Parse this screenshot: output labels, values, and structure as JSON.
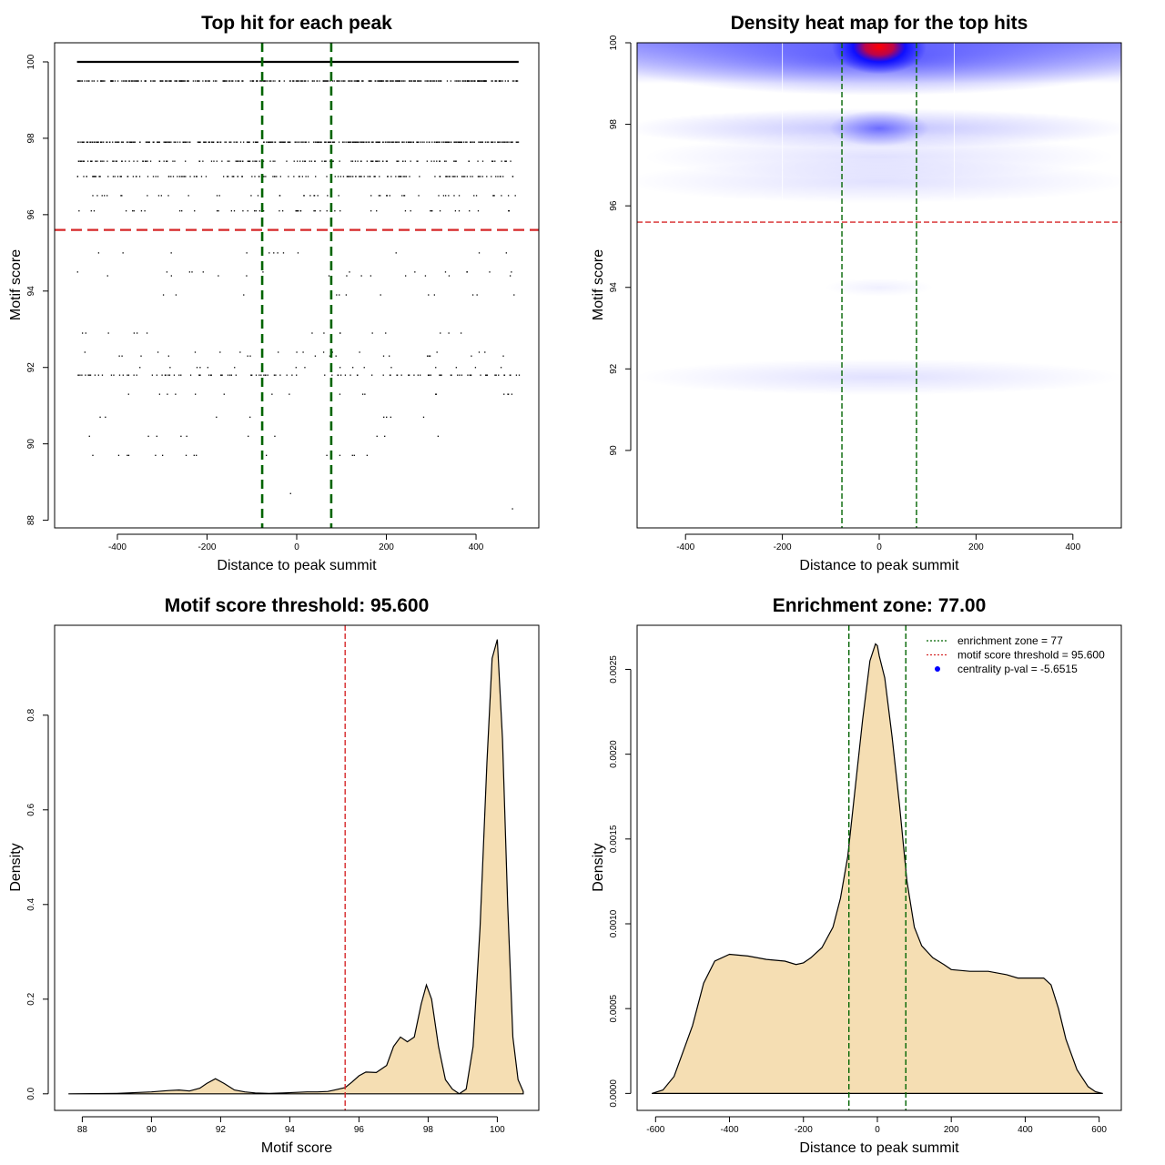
{
  "colors": {
    "threshold": "#d62728",
    "zone": "#006400",
    "fill": "#f5deb3",
    "heat_low": "#ffffff",
    "heat_mid": "#0000ff",
    "heat_high": "#ff0000",
    "pval_dot": "#0000ff"
  },
  "chart_data": [
    {
      "type": "scatter",
      "title": "Top hit for each peak",
      "xlabel": "Distance to peak summit",
      "ylabel": "Motif score",
      "xlim": [
        -540,
        540
      ],
      "ylim": [
        87.8,
        100.5
      ],
      "xticks": [
        -400,
        -200,
        0,
        200,
        400
      ],
      "yticks": [
        88,
        90,
        92,
        94,
        96,
        98,
        100
      ],
      "threshold": 95.6,
      "zone": [
        -77,
        77
      ],
      "dense_rows": [
        {
          "score": 100.0,
          "density": "full"
        },
        {
          "score": 99.5,
          "density": "high"
        },
        {
          "score": 97.9,
          "density": "high"
        },
        {
          "score": 97.4,
          "density": "medium"
        },
        {
          "score": 97.0,
          "density": "medium"
        },
        {
          "score": 96.5,
          "density": "low"
        },
        {
          "score": 96.1,
          "density": "low"
        }
      ],
      "sparse_rows": [
        95.0,
        94.5,
        94.4,
        93.9,
        92.9,
        92.4,
        92.3,
        92.0,
        91.8,
        91.3,
        90.7,
        90.2,
        89.7
      ],
      "outliers": [
        [
          -15,
          88.7
        ],
        [
          480,
          88.3
        ],
        [
          -490,
          94.5
        ],
        [
          195,
          90.2
        ]
      ]
    },
    {
      "type": "heatmap",
      "title": "Density heat map for the top hits",
      "xlabel": "Distance to peak summit",
      "ylabel": "Motif score",
      "xlim": [
        -500,
        500
      ],
      "ylim": [
        88.1,
        100
      ],
      "xticks": [
        -400,
        -200,
        0,
        200,
        400
      ],
      "yticks": [
        90,
        92,
        94,
        96,
        98,
        100
      ],
      "threshold": 95.6,
      "zone": [
        -77,
        77
      ]
    },
    {
      "type": "area",
      "title": "Motif score threshold: 95.600",
      "xlabel": "Motif score",
      "ylabel": "Density",
      "xlim": [
        87.2,
        101.2
      ],
      "ylim": [
        -0.035,
        0.99
      ],
      "xticks": [
        88,
        90,
        92,
        94,
        96,
        98,
        100
      ],
      "yticks": [
        "0.0",
        "0.2",
        "0.4",
        "0.6",
        "0.8"
      ],
      "threshold": 95.6,
      "x": [
        87.6,
        89.0,
        90.0,
        90.5,
        90.8,
        91.1,
        91.4,
        91.6,
        91.85,
        92.1,
        92.4,
        92.7,
        93.0,
        93.4,
        93.8,
        94.2,
        94.5,
        94.8,
        95.1,
        95.3,
        95.6,
        95.8,
        96.0,
        96.2,
        96.5,
        96.8,
        97.0,
        97.2,
        97.4,
        97.6,
        97.8,
        97.95,
        98.1,
        98.3,
        98.5,
        98.7,
        98.9,
        99.1,
        99.3,
        99.5,
        99.7,
        99.85,
        100.0,
        100.15,
        100.3,
        100.45,
        100.6,
        100.75
      ],
      "values": [
        0.0,
        0.001,
        0.004,
        0.007,
        0.008,
        0.006,
        0.012,
        0.022,
        0.032,
        0.022,
        0.008,
        0.004,
        0.002,
        0.001,
        0.002,
        0.003,
        0.004,
        0.004,
        0.005,
        0.008,
        0.013,
        0.025,
        0.038,
        0.046,
        0.045,
        0.06,
        0.1,
        0.12,
        0.11,
        0.12,
        0.19,
        0.23,
        0.2,
        0.1,
        0.03,
        0.01,
        0.0,
        0.01,
        0.1,
        0.35,
        0.7,
        0.92,
        0.96,
        0.75,
        0.4,
        0.12,
        0.03,
        0.005
      ]
    },
    {
      "type": "area",
      "title": "Enrichment zone: 77.00",
      "xlabel": "Distance to peak summit",
      "ylabel": "Density",
      "xlim": [
        -650,
        660
      ],
      "ylim": [
        -0.0001,
        0.00276
      ],
      "xticks": [
        -600,
        -400,
        -200,
        0,
        200,
        400,
        600
      ],
      "yticks": [
        "0.0000",
        "0.0005",
        "0.0010",
        "0.0015",
        "0.0020",
        "0.0025"
      ],
      "zone": [
        -77,
        77
      ],
      "x": [
        -610,
        -580,
        -550,
        -520,
        -500,
        -470,
        -440,
        -400,
        -350,
        -300,
        -250,
        -220,
        -200,
        -180,
        -150,
        -120,
        -100,
        -80,
        -60,
        -40,
        -20,
        -5,
        0,
        5,
        20,
        40,
        60,
        80,
        100,
        120,
        150,
        180,
        200,
        250,
        300,
        350,
        380,
        420,
        450,
        470,
        490,
        510,
        540,
        570,
        590,
        610
      ],
      "values": [
        0.0,
        2e-05,
        0.0001,
        0.00028,
        0.0004,
        0.00065,
        0.00078,
        0.00082,
        0.00081,
        0.00079,
        0.00078,
        0.00076,
        0.00077,
        0.0008,
        0.00086,
        0.00098,
        0.00115,
        0.0014,
        0.0018,
        0.0022,
        0.00255,
        0.00265,
        0.00264,
        0.00258,
        0.00245,
        0.0021,
        0.0017,
        0.00125,
        0.00098,
        0.00087,
        0.0008,
        0.00076,
        0.00073,
        0.00072,
        0.00072,
        0.0007,
        0.00068,
        0.00068,
        0.00068,
        0.00064,
        0.0005,
        0.00032,
        0.00014,
        4e-05,
        1e-05,
        0.0
      ],
      "legend": [
        {
          "label": "enrichment zone = 77",
          "style": "dotted-line",
          "color": "#006400"
        },
        {
          "label": "motif score threshold = 95.600",
          "style": "dotted-line",
          "color": "#d62728"
        },
        {
          "label": "centrality p-val = -5.6515",
          "style": "dot",
          "color": "#0000ff"
        }
      ],
      "legend_position": "top-right"
    }
  ]
}
